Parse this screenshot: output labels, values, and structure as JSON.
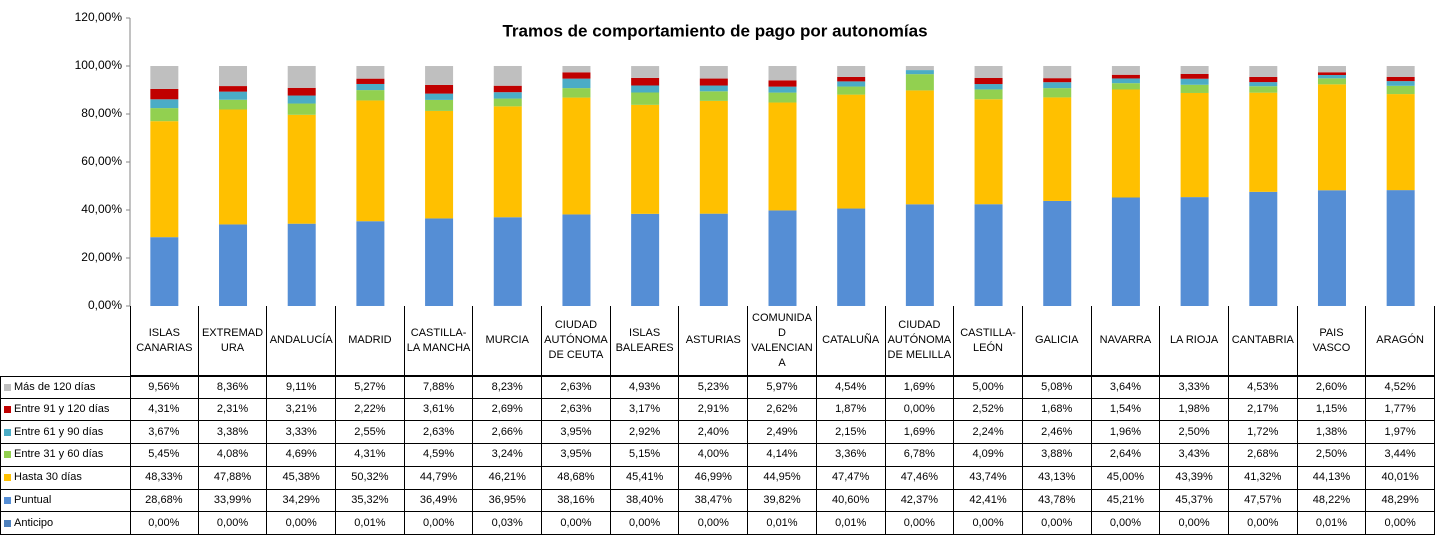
{
  "chart_data": {
    "type": "stacked_bar",
    "title": "Tramos de comportamiento de pago por autonomías",
    "categories": [
      "ISLAS CANARIAS",
      "EXTREMADURA",
      "ANDALUCÍA",
      "MADRID",
      "CASTILLA-LA MANCHA",
      "MURCIA",
      "CIUDAD AUTÓNOMA DE CEUTA",
      "ISLAS BALEARES",
      "ASTURIAS",
      "COMUNIDAD VALENCIANA",
      "CATALUÑA",
      "CIUDAD AUTÓNOMA DE MELILLA",
      "CASTILLA-LEÓN",
      "GALICIA",
      "NAVARRA",
      "LA RIOJA",
      "CANTABRIA",
      "PAIS VASCO",
      "ARAGÓN"
    ],
    "ylim": [
      0,
      120
    ],
    "yticks": [
      {
        "value": 0,
        "label": "0,00%"
      },
      {
        "value": 20,
        "label": "20,00%"
      },
      {
        "value": 40,
        "label": "40,00%"
      },
      {
        "value": 60,
        "label": "60,00%"
      },
      {
        "value": 80,
        "label": "80,00%"
      },
      {
        "value": 100,
        "label": "100,00%"
      },
      {
        "value": 120,
        "label": "120,00%"
      }
    ],
    "series": [
      {
        "name": "Más de 120 días",
        "color": "#bfbfbf",
        "values": [
          9.56,
          8.36,
          9.11,
          5.27,
          7.88,
          8.23,
          2.63,
          4.93,
          5.23,
          5.97,
          4.54,
          1.69,
          5,
          5.08,
          3.64,
          3.33,
          4.53,
          2.6,
          4.52
        ],
        "value_labels": [
          "9,56%",
          "8,36%",
          "9,11%",
          "5,27%",
          "7,88%",
          "8,23%",
          "2,63%",
          "4,93%",
          "5,23%",
          "5,97%",
          "4,54%",
          "1,69%",
          "5,00%",
          "5,08%",
          "3,64%",
          "3,33%",
          "4,53%",
          "2,60%",
          "4,52%"
        ]
      },
      {
        "name": "Entre 91 y 120 días",
        "color": "#c00000",
        "values": [
          4.31,
          2.31,
          3.21,
          2.22,
          3.61,
          2.69,
          2.63,
          3.17,
          2.91,
          2.62,
          1.87,
          0,
          2.52,
          1.68,
          1.54,
          1.98,
          2.17,
          1.15,
          1.77
        ],
        "value_labels": [
          "4,31%",
          "2,31%",
          "3,21%",
          "2,22%",
          "3,61%",
          "2,69%",
          "2,63%",
          "3,17%",
          "2,91%",
          "2,62%",
          "1,87%",
          "0,00%",
          "2,52%",
          "1,68%",
          "1,54%",
          "1,98%",
          "2,17%",
          "1,15%",
          "1,77%"
        ]
      },
      {
        "name": "Entre 61 y 90 días",
        "color": "#4bacc6",
        "values": [
          3.67,
          3.38,
          3.33,
          2.55,
          2.63,
          2.66,
          3.95,
          2.92,
          2.4,
          2.49,
          2.15,
          1.69,
          2.24,
          2.46,
          1.96,
          2.5,
          1.72,
          1.38,
          1.97
        ],
        "value_labels": [
          "3,67%",
          "3,38%",
          "3,33%",
          "2,55%",
          "2,63%",
          "2,66%",
          "3,95%",
          "2,92%",
          "2,40%",
          "2,49%",
          "2,15%",
          "1,69%",
          "2,24%",
          "2,46%",
          "1,96%",
          "2,50%",
          "1,72%",
          "1,38%",
          "1,97%"
        ]
      },
      {
        "name": "Entre 31 y 60 días",
        "color": "#92d050",
        "values": [
          5.45,
          4.08,
          4.69,
          4.31,
          4.59,
          3.24,
          3.95,
          5.15,
          4,
          4.14,
          3.36,
          6.78,
          4.09,
          3.88,
          2.64,
          3.43,
          2.68,
          2.5,
          3.44
        ],
        "value_labels": [
          "5,45%",
          "4,08%",
          "4,69%",
          "4,31%",
          "4,59%",
          "3,24%",
          "3,95%",
          "5,15%",
          "4,00%",
          "4,14%",
          "3,36%",
          "6,78%",
          "4,09%",
          "3,88%",
          "2,64%",
          "3,43%",
          "2,68%",
          "2,50%",
          "3,44%"
        ]
      },
      {
        "name": "Hasta 30 días",
        "color": "#ffc000",
        "values": [
          48.33,
          47.88,
          45.38,
          50.32,
          44.79,
          46.21,
          48.68,
          45.41,
          46.99,
          44.95,
          47.47,
          47.46,
          43.74,
          43.13,
          45,
          43.39,
          41.32,
          44.13,
          40.01
        ],
        "value_labels": [
          "48,33%",
          "47,88%",
          "45,38%",
          "50,32%",
          "44,79%",
          "46,21%",
          "48,68%",
          "45,41%",
          "46,99%",
          "44,95%",
          "47,47%",
          "47,46%",
          "43,74%",
          "43,13%",
          "45,00%",
          "43,39%",
          "41,32%",
          "44,13%",
          "40,01%"
        ]
      },
      {
        "name": "Puntual",
        "color": "#558ed5",
        "values": [
          28.68,
          33.99,
          34.29,
          35.32,
          36.49,
          36.95,
          38.16,
          38.4,
          38.47,
          39.82,
          40.6,
          42.37,
          42.41,
          43.78,
          45.21,
          45.37,
          47.57,
          48.22,
          48.29
        ],
        "value_labels": [
          "28,68%",
          "33,99%",
          "34,29%",
          "35,32%",
          "36,49%",
          "36,95%",
          "38,16%",
          "38,40%",
          "38,47%",
          "39,82%",
          "40,60%",
          "42,37%",
          "42,41%",
          "43,78%",
          "45,21%",
          "45,37%",
          "47,57%",
          "48,22%",
          "48,29%"
        ]
      },
      {
        "name": "Anticipo",
        "color": "#4f81bd",
        "values": [
          0,
          0,
          0,
          0.01,
          0,
          0.03,
          0,
          0,
          0,
          0.01,
          0.01,
          0,
          0,
          0,
          0,
          0,
          0,
          0.01,
          0
        ],
        "value_labels": [
          "0,00%",
          "0,00%",
          "0,00%",
          "0,01%",
          "0,00%",
          "0,03%",
          "0,00%",
          "0,00%",
          "0,00%",
          "0,01%",
          "0,01%",
          "0,00%",
          "0,00%",
          "0,00%",
          "0,00%",
          "0,00%",
          "0,00%",
          "0,01%",
          "0,00%"
        ]
      }
    ]
  }
}
